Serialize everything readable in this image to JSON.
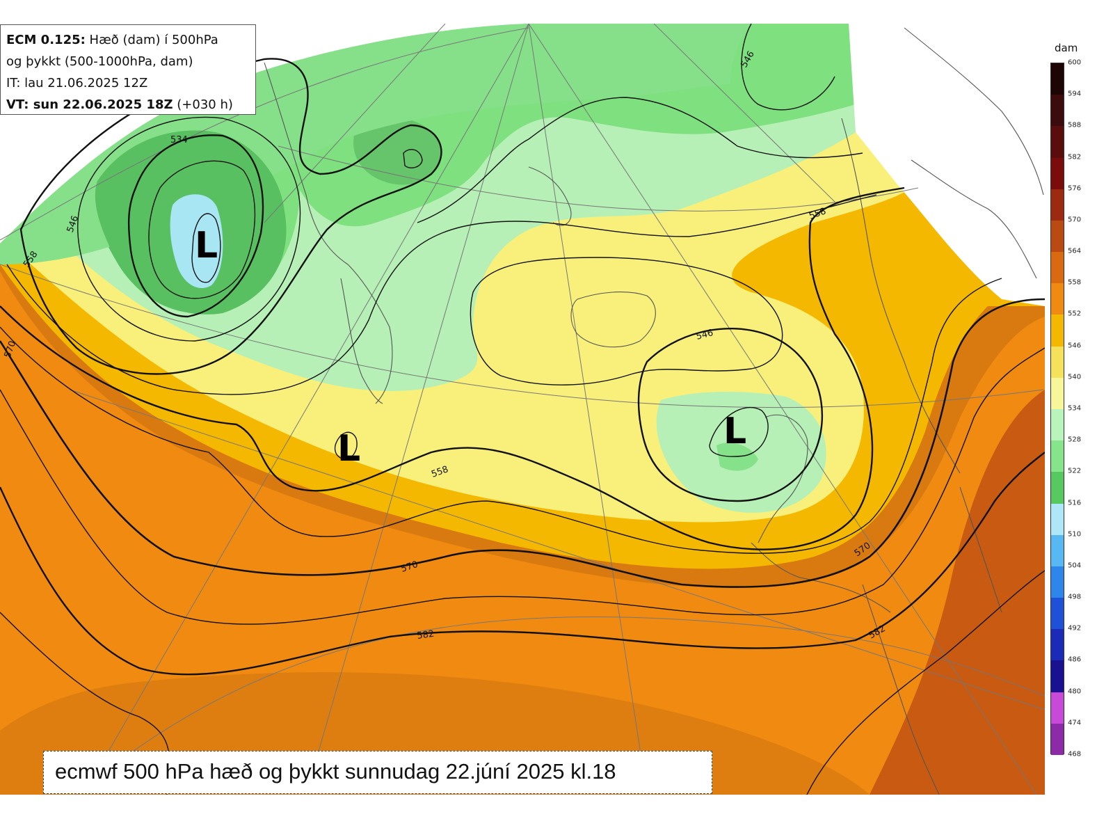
{
  "info": {
    "line1_bold": "ECM 0.125:",
    "line1_rest": " Hæð (dam) í 500hPa",
    "line2": "og þykkt (500-1000hPa, dam)",
    "line3": "IT: lau 21.06.2025 12Z",
    "line4_bold": "VT: sun 22.06.2025 18Z",
    "line4_rest": " (+030 h)"
  },
  "caption": "ecmwf 500 hPa hæð og þykkt sunnudag 22.júní 2025 kl.18",
  "colorbar": {
    "unit": "dam",
    "levels": [
      600,
      594,
      588,
      582,
      576,
      570,
      564,
      558,
      552,
      546,
      540,
      534,
      528,
      522,
      516,
      510,
      504,
      498,
      492,
      486,
      480,
      474,
      468
    ],
    "colors": [
      "#1e0505",
      "#3c0c0c",
      "#5a0d0d",
      "#7a0c0c",
      "#9c2a10",
      "#bb4a12",
      "#d96a10",
      "#f08a10",
      "#f4b800",
      "#f6e25a",
      "#f8f69a",
      "#b8f4bc",
      "#86e48a",
      "#58c860",
      "#aee8f8",
      "#58b8f4",
      "#2f86ea",
      "#1f50d8",
      "#1c2ab8",
      "#1a1190",
      "#c84ad8",
      "#8c2aa8",
      "#6c1a90"
    ]
  },
  "lows": [
    "L",
    "L",
    "L"
  ],
  "contour_labels": [
    "534",
    "546",
    "558",
    "570",
    "546",
    "558",
    "546",
    "558",
    "570",
    "582",
    "582",
    "570"
  ]
}
